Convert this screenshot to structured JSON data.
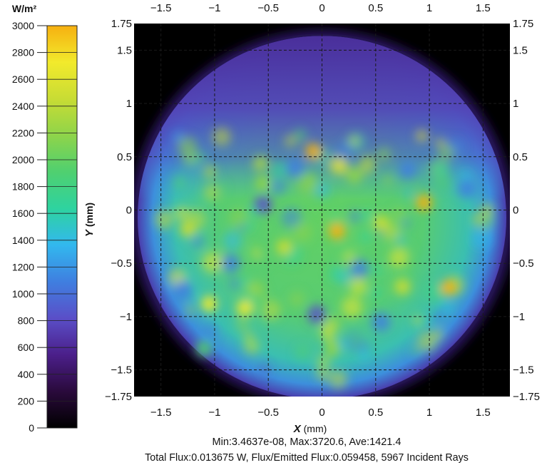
{
  "chart_data": {
    "type": "heatmap",
    "title": "",
    "xlabel": "X (mm)",
    "ylabel": "Y (mm)",
    "xlim": [
      -1.75,
      1.75
    ],
    "ylim": [
      -1.75,
      1.75
    ],
    "x_ticks": [
      "-1.5",
      "-1",
      "-0.5",
      "0",
      "0.5",
      "1",
      "1.5"
    ],
    "y_ticks": [
      "1.75",
      "1.5",
      "1",
      "0.5",
      "0",
      "-0.5",
      "-1",
      "-1.5",
      "-1.75"
    ],
    "grid": true,
    "colorbar": {
      "unit": "W/m²",
      "range": [
        0,
        3000
      ],
      "ticks": [
        "3000",
        "2800",
        "2600",
        "2400",
        "2200",
        "2000",
        "1800",
        "1600",
        "1400",
        "1200",
        "1000",
        "800",
        "600",
        "400",
        "200",
        "0"
      ],
      "colors": [
        "#000000",
        "#2a0a3c",
        "#4b1f8a",
        "#5a4fc8",
        "#3f7fe0",
        "#32b8ee",
        "#2ed3a0",
        "#4fd070",
        "#8ed44a",
        "#c8dc34",
        "#f2ea2c",
        "#f6b010"
      ]
    },
    "stats": {
      "line1": "Min:3.4637e-08, Max:3720.6, Ave:1421.4",
      "line2": "Total Flux:0.013675 W, Flux/Emitted Flux:0.059458, 5967 Incident Rays"
    },
    "hotspots": [
      {
        "x": -0.08,
        "y": 0.55,
        "value": 3200
      },
      {
        "x": 0.95,
        "y": 0.07,
        "value": 3700
      },
      {
        "x": 1.18,
        "y": -0.73,
        "value": 3300
      },
      {
        "x": 0.14,
        "y": -0.2,
        "value": 2900
      },
      {
        "x": -0.72,
        "y": -0.92,
        "value": 2800
      },
      {
        "x": -1.05,
        "y": -0.88,
        "value": 2600
      },
      {
        "x": -1.25,
        "y": -0.18,
        "value": 2500
      },
      {
        "x": 0.55,
        "y": -0.12,
        "value": 2500
      },
      {
        "x": -0.35,
        "y": -0.35,
        "value": 2400
      },
      {
        "x": 0.3,
        "y": 0.32,
        "value": 2300
      },
      {
        "x": 0.75,
        "y": -0.72,
        "value": 2400
      },
      {
        "x": -0.55,
        "y": 0.25,
        "value": 2100
      },
      {
        "x": -1.1,
        "y": -1.3,
        "value": 2000
      },
      {
        "x": 0.1,
        "y": -1.3,
        "value": 2200
      }
    ],
    "coldspots": [
      {
        "x": -0.55,
        "y": 0.05,
        "value": 900
      },
      {
        "x": 0.35,
        "y": -0.55,
        "value": 1000
      },
      {
        "x": -0.05,
        "y": -0.98,
        "value": 950
      },
      {
        "x": -1.3,
        "y": -0.75,
        "value": 1000
      },
      {
        "x": 0.8,
        "y": 0.38,
        "value": 1100
      },
      {
        "x": -0.25,
        "y": 0.4,
        "value": 1100
      },
      {
        "x": 1.35,
        "y": 0.2,
        "value": 1200
      },
      {
        "x": 0.55,
        "y": -1.05,
        "value": 1100
      },
      {
        "x": -0.85,
        "y": -0.5,
        "value": 1200
      }
    ]
  }
}
